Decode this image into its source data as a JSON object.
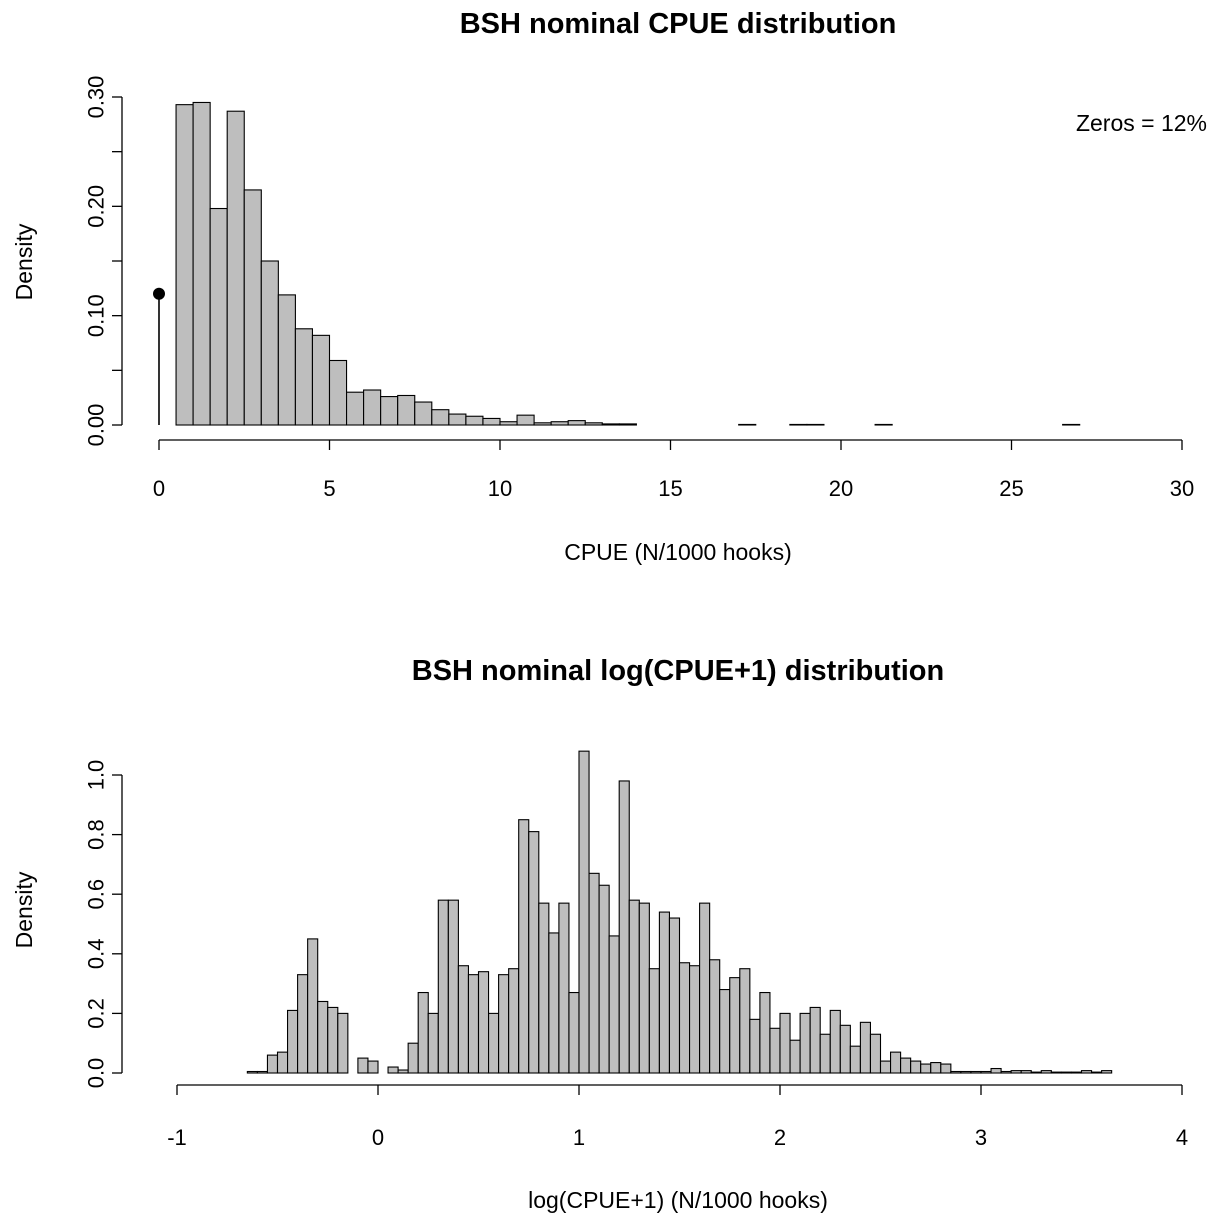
{
  "chart_data": [
    {
      "type": "bar",
      "title": "BSH nominal CPUE distribution",
      "xlabel": "CPUE (N/1000 hooks)",
      "ylabel": "Density",
      "xlim": [
        0,
        30
      ],
      "ylim": [
        0,
        0.3
      ],
      "x_ticks": [
        "0",
        "5",
        "10",
        "15",
        "20",
        "25",
        "30"
      ],
      "y_ticks": [
        "0.00",
        "0.10",
        "0.20",
        "0.30"
      ],
      "annotation": "Zeros = 12%",
      "zero_spike": {
        "x": 0,
        "value": 0.12
      },
      "bin_start": 0.5,
      "bin_width": 0.5,
      "values": [
        0.293,
        0.295,
        0.198,
        0.287,
        0.215,
        0.15,
        0.119,
        0.088,
        0.082,
        0.059,
        0.03,
        0.032,
        0.026,
        0.027,
        0.021,
        0.014,
        0.01,
        0.008,
        0.006,
        0.003,
        0.009,
        0.002,
        0.003,
        0.004,
        0.002,
        0.001,
        0.001,
        0,
        0,
        0,
        0,
        0,
        0,
        0.0005,
        0,
        0,
        0.0005,
        0.0005,
        0,
        0,
        0,
        0.0005,
        0,
        0,
        0,
        0,
        0,
        0,
        0,
        0,
        0,
        0,
        0.0005,
        0,
        0,
        0,
        0,
        0,
        0,
        0,
        0,
        0,
        0,
        0,
        0,
        0,
        0,
        0,
        0,
        0,
        0,
        0,
        0,
        0,
        0,
        0.0005,
        0,
        0,
        0,
        0,
        0,
        0,
        0,
        0,
        0,
        0,
        0,
        0,
        0,
        0,
        0,
        0,
        0,
        0,
        0,
        0,
        0,
        0,
        0,
        0,
        0,
        0,
        0,
        0,
        0,
        0,
        0,
        0,
        0,
        0,
        0,
        0,
        0,
        0,
        0.0005
      ]
    },
    {
      "type": "bar",
      "title": "BSH nominal log(CPUE+1) distribution",
      "xlabel": "log(CPUE+1) (N/1000 hooks)",
      "ylabel": "Density",
      "xlim": [
        -1,
        4
      ],
      "ylim": [
        0,
        1.0
      ],
      "x_ticks": [
        "-1",
        "0",
        "1",
        "2",
        "3",
        "4"
      ],
      "y_ticks": [
        "0.0",
        "0.2",
        "0.4",
        "0.6",
        "0.8",
        "1.0"
      ],
      "bin_start": -0.65,
      "bin_width": 0.05,
      "values": [
        0.005,
        0.005,
        0.06,
        0.07,
        0.21,
        0.33,
        0.45,
        0.24,
        0.22,
        0.2,
        0.0,
        0.05,
        0.04,
        0.0,
        0.02,
        0.01,
        0.1,
        0.27,
        0.2,
        0.58,
        0.58,
        0.36,
        0.33,
        0.34,
        0.2,
        0.33,
        0.35,
        0.85,
        0.81,
        0.57,
        0.47,
        0.57,
        0.27,
        1.08,
        0.67,
        0.63,
        0.46,
        0.98,
        0.58,
        0.57,
        0.35,
        0.54,
        0.52,
        0.37,
        0.36,
        0.57,
        0.38,
        0.28,
        0.32,
        0.35,
        0.18,
        0.27,
        0.15,
        0.2,
        0.11,
        0.2,
        0.22,
        0.13,
        0.21,
        0.16,
        0.09,
        0.17,
        0.13,
        0.04,
        0.07,
        0.05,
        0.04,
        0.03,
        0.035,
        0.03,
        0.005,
        0.005,
        0.005,
        0.005,
        0.015,
        0.005,
        0.008,
        0.008,
        0.003,
        0.008,
        0.003,
        0.003,
        0.003,
        0.008,
        0.003,
        0.008
      ]
    }
  ]
}
